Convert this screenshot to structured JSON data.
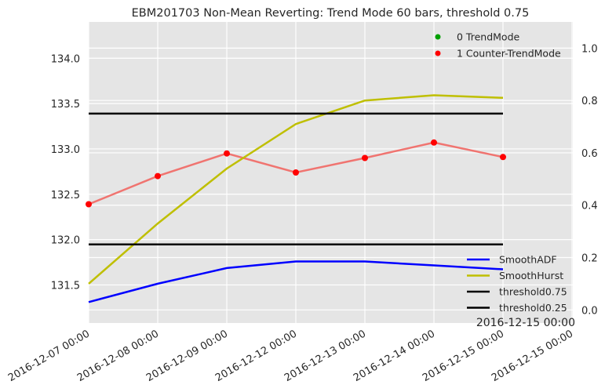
{
  "chart_data": {
    "type": "line",
    "title": "EBM201703 Non-Mean Reverting: Trend Mode 60 bars, threshold 0.75",
    "x_tick_labels": [
      "2016-12-07 00:00",
      "2016-12-08 00:00",
      "2016-12-09 00:00",
      "2016-12-12 00:00",
      "2016-12-13 00:00",
      "2016-12-14 00:00",
      "2016-12-15 00:00",
      "2016-12-15 00:00"
    ],
    "corner_label": "2016-12-15 00:00",
    "y_left": {
      "ylim": [
        131.08,
        134.4
      ],
      "ticks": [
        131.5,
        132.0,
        132.5,
        133.0,
        133.5,
        134.0
      ],
      "tick_labels": [
        "131.5",
        "132.0",
        "132.5",
        "133.0",
        "133.5",
        "134.0"
      ]
    },
    "y_right": {
      "ylim": [
        -0.05,
        1.1
      ],
      "ticks": [
        0.0,
        0.2,
        0.4,
        0.6,
        0.8,
        1.0
      ],
      "tick_labels": [
        "0.0",
        "0.2",
        "0.4",
        "0.6",
        "0.8",
        "1.0"
      ]
    },
    "grid": true,
    "background": "#e5e5e5",
    "price_line": {
      "axis": "left",
      "color": "#f07470",
      "x_index": [
        0,
        1,
        2,
        3,
        4,
        5,
        6
      ],
      "values": [
        132.39,
        132.7,
        132.95,
        132.74,
        132.9,
        133.07,
        132.91
      ]
    },
    "markers": [
      {
        "name": "0 TrendMode",
        "color": "#00a000",
        "points": []
      },
      {
        "name": "1 Counter-TrendMode",
        "color": "#ff0000",
        "x_index": [
          0,
          1,
          2,
          3,
          4,
          5,
          6
        ],
        "values": [
          132.39,
          132.7,
          132.95,
          132.74,
          132.9,
          133.07,
          132.91
        ]
      }
    ],
    "series": [
      {
        "name": "SmoothADF",
        "axis": "right",
        "color": "#0000ff",
        "x_index": [
          0,
          1,
          2,
          3,
          4,
          5,
          6
        ],
        "values": [
          0.03,
          0.1,
          0.16,
          0.185,
          0.185,
          0.17,
          0.155
        ]
      },
      {
        "name": "SmoothHurst",
        "axis": "right",
        "color": "#bfbf00",
        "x_index": [
          0,
          1,
          2,
          3,
          4,
          5,
          6
        ],
        "values": [
          0.1,
          0.33,
          0.54,
          0.71,
          0.8,
          0.82,
          0.81
        ]
      },
      {
        "name": "threshold0.75",
        "axis": "right",
        "color": "#000000",
        "x_index": [
          0,
          6
        ],
        "values": [
          0.75,
          0.75
        ]
      },
      {
        "name": "threshold0.25",
        "axis": "right",
        "color": "#000000",
        "x_index": [
          0,
          6
        ],
        "values": [
          0.25,
          0.25
        ]
      }
    ],
    "legend_top": {
      "placement": "top-right",
      "entries": [
        "0 TrendMode",
        "1 Counter-TrendMode"
      ]
    },
    "legend_bottom": {
      "placement": "lower-right",
      "entries": [
        "SmoothADF",
        "SmoothHurst",
        "threshold0.75",
        "threshold0.25"
      ]
    }
  }
}
